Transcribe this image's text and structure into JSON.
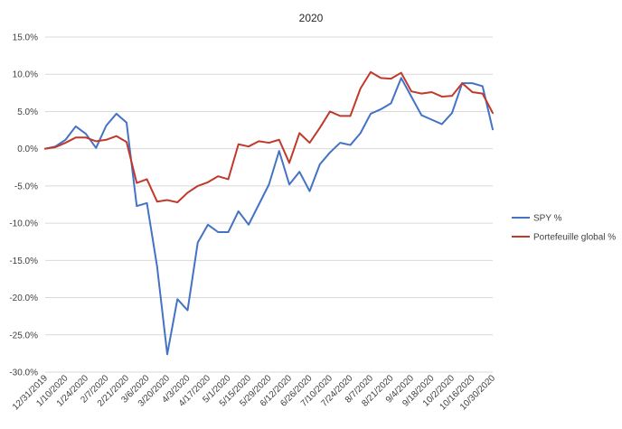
{
  "chart_data": {
    "type": "line",
    "title": "2020",
    "xlabel": "",
    "ylabel": "",
    "ylim": [
      -30,
      15
    ],
    "y_ticks": [
      "15.0%",
      "10.0%",
      "5.0%",
      "0.0%",
      "-5.0%",
      "-10.0%",
      "-15.0%",
      "-20.0%",
      "-25.0%",
      "-30.0%"
    ],
    "x_tick_labels": [
      "12/31/2019",
      "1/10/2020",
      "1/24/2020",
      "2/7/2020",
      "2/21/2020",
      "3/6/2020",
      "3/20/2020",
      "4/3/2020",
      "4/17/2020",
      "5/1/2020",
      "5/15/2020",
      "5/29/2020",
      "6/12/2020",
      "6/26/2020",
      "7/10/2020",
      "7/24/2020",
      "8/7/2020",
      "8/21/2020",
      "9/4/2020",
      "9/18/2020",
      "10/2/2020",
      "10/16/2020",
      "10/30/2020"
    ],
    "grid": true,
    "legend_position": "right",
    "series": [
      {
        "name": "SPY %",
        "color": "#4472C4",
        "values": [
          0,
          0.3,
          1.2,
          3.0,
          2.0,
          0.1,
          3.1,
          4.7,
          3.5,
          -7.7,
          -7.3,
          -15.8,
          -27.6,
          -20.2,
          -21.7,
          -12.6,
          -10.2,
          -11.2,
          -11.2,
          -8.4,
          -10.2,
          -7.5,
          -4.8,
          -0.3,
          -4.8,
          -3.1,
          -5.7,
          -2.1,
          -0.5,
          0.8,
          0.5,
          2.1,
          4.7,
          5.3,
          6.1,
          9.5,
          7.0,
          4.5,
          3.9,
          3.3,
          4.8,
          8.8,
          8.8,
          8.4,
          2.6
        ]
      },
      {
        "name": "Portefeuille global %",
        "color": "#C0392B",
        "values": [
          0,
          0.2,
          0.8,
          1.5,
          1.5,
          1.0,
          1.2,
          1.7,
          0.9,
          -4.6,
          -4.1,
          -7.1,
          -6.9,
          -7.2,
          -5.9,
          -5.0,
          -4.5,
          -3.7,
          -4.1,
          0.6,
          0.3,
          1.0,
          0.8,
          1.2,
          -1.9,
          2.1,
          0.8,
          2.8,
          5.0,
          4.4,
          4.4,
          8.1,
          10.3,
          9.5,
          9.4,
          10.2,
          7.7,
          7.4,
          7.6,
          7.0,
          7.1,
          8.8,
          7.6,
          7.4,
          4.8
        ]
      }
    ]
  }
}
